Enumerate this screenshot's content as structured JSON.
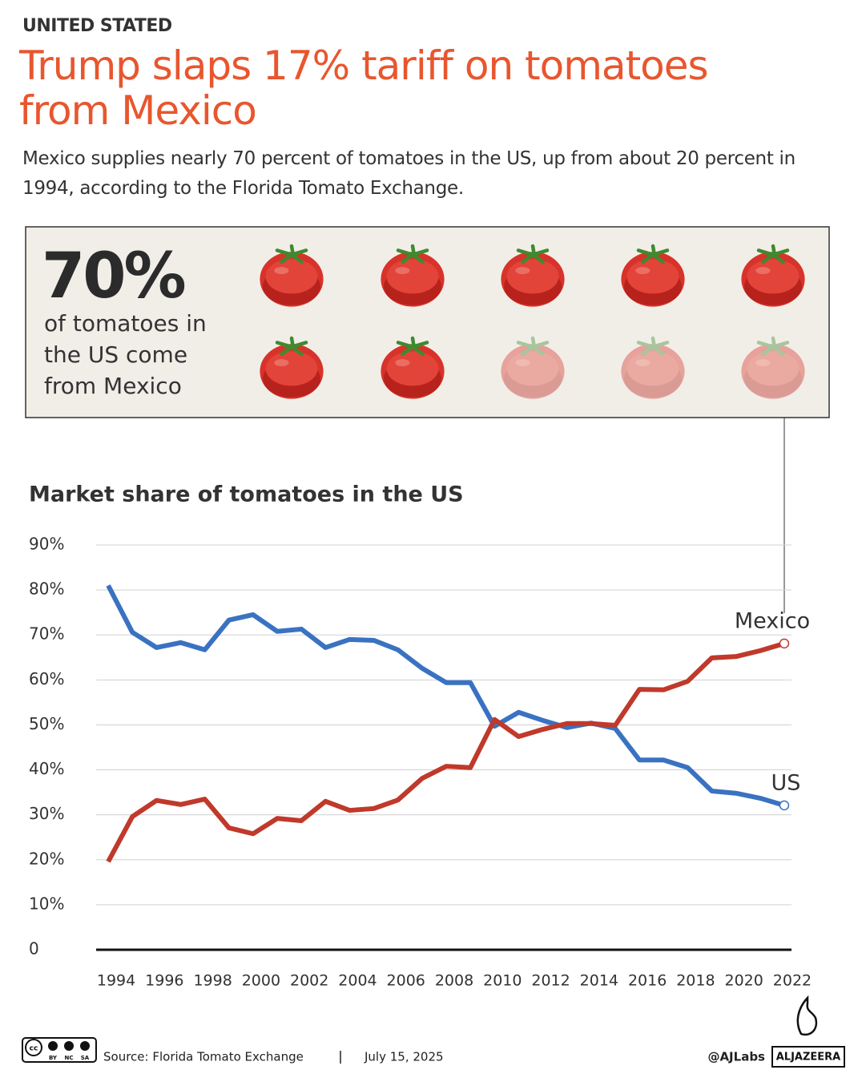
{
  "header": {
    "kicker": "UNITED STATED",
    "title": "Trump slaps 17% tariff on tomatoes from Mexico",
    "subtitle": "Mexico supplies nearly 70 percent of tomatoes in the US, up from about 20 percent in 1994, according to the Florida Tomato Exchange."
  },
  "callout": {
    "big": "70%",
    "text": "of tomatoes in the US come from Mexico"
  },
  "chart_data": {
    "type": "line",
    "title": "Market share of tomatoes in the US",
    "x": [
      1994,
      1995,
      1996,
      1997,
      1998,
      1999,
      2000,
      2001,
      2002,
      2003,
      2004,
      2005,
      2006,
      2007,
      2008,
      2009,
      2010,
      2011,
      2012,
      2013,
      2014,
      2015,
      2016,
      2017,
      2018,
      2019,
      2020,
      2021,
      2022
    ],
    "series": [
      {
        "name": "US",
        "color": "#3a72c2",
        "values": [
          81,
          70.6,
          67.2,
          68.3,
          66.7,
          73.3,
          74.5,
          70.8,
          71.3,
          67.2,
          69,
          68.8,
          66.7,
          62.6,
          59.4,
          59.4,
          49.7,
          52.8,
          51,
          49.4,
          50.4,
          49.2,
          42.2,
          42.2,
          40.5,
          35.3,
          34.8,
          33.7,
          32.1
        ]
      },
      {
        "name": "Mexico",
        "color": "#c0392b",
        "values": [
          19.6,
          29.6,
          33.2,
          32.3,
          33.5,
          27.1,
          25.8,
          29.2,
          28.7,
          33,
          31,
          31.4,
          33.3,
          38.1,
          40.8,
          40.5,
          51.2,
          47.4,
          49,
          50.3,
          50.3,
          49.9,
          57.9,
          57.8,
          59.7,
          64.9,
          65.2,
          66.5,
          68.1
        ]
      }
    ],
    "xlim": [
      1993.5,
      2022.3
    ],
    "xticks": [
      1994,
      1996,
      1998,
      2000,
      2002,
      2004,
      2006,
      2008,
      2010,
      2012,
      2014,
      2016,
      2018,
      2020,
      2022
    ],
    "ylim": [
      0,
      90
    ],
    "yticks": [
      0,
      {
        "value": 10,
        "label": "10%"
      },
      {
        "value": 20,
        "label": "20%"
      },
      {
        "value": 30,
        "label": "30%"
      },
      {
        "value": 40,
        "label": "40%"
      },
      {
        "value": 50,
        "label": "50%"
      },
      {
        "value": 60,
        "label": "60%"
      },
      {
        "value": 70,
        "label": "70%"
      },
      {
        "value": 80,
        "label": "80%"
      },
      {
        "value": 90,
        "label": "90%"
      }
    ],
    "grid": true
  },
  "footer": {
    "license": [
      "BY",
      "NC",
      "SA"
    ],
    "cc": "cc",
    "source": "Source:  Florida Tomato Exchange",
    "date": "July 15, 2025",
    "handle": "@AJLabs",
    "brand": "ALJAZEERA"
  }
}
